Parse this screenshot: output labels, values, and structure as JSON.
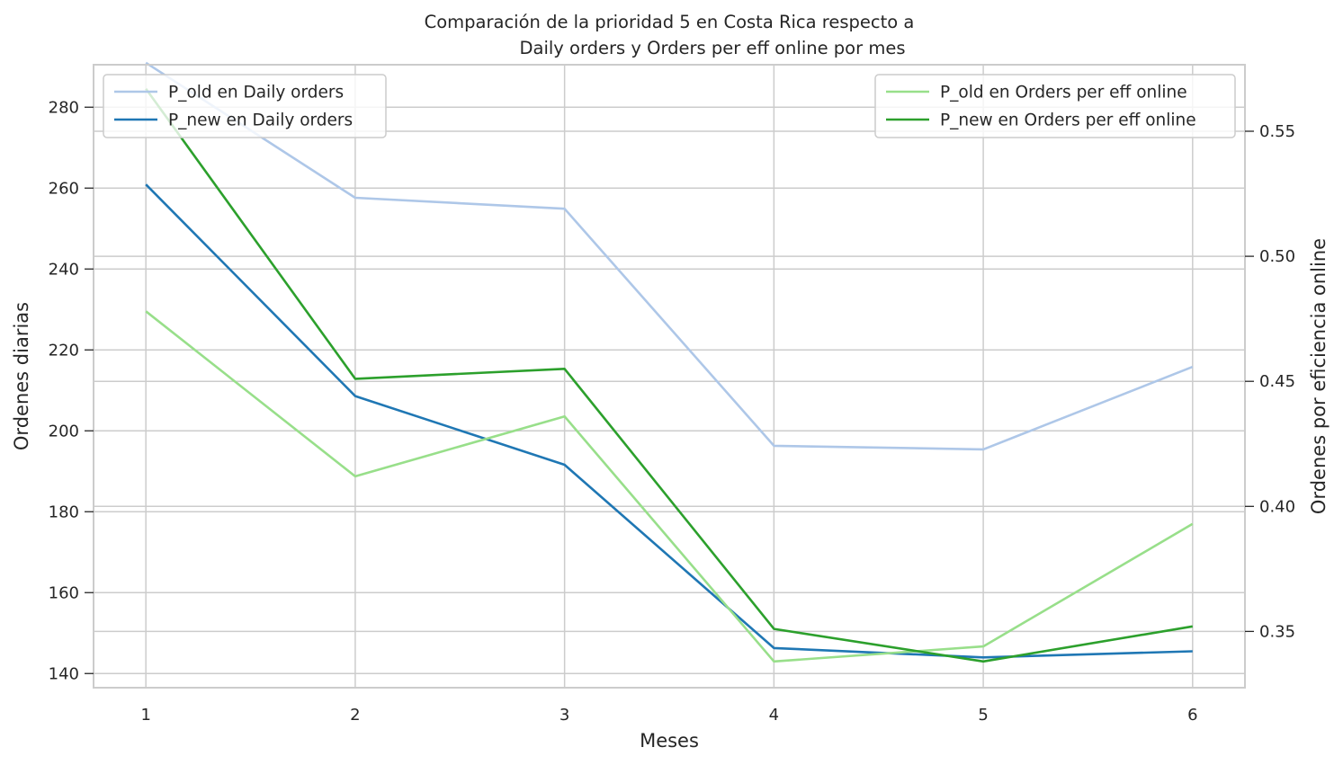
{
  "chart_data": {
    "type": "line",
    "title_line1": "Comparación de la prioridad 5 en Costa Rica respecto a",
    "title_line2": "Daily orders y Orders per eff online por mes",
    "xlabel": "Meses",
    "ylabel_left": "Ordenes diarias",
    "ylabel_right": "Ordenes por eficiencia online",
    "x": [
      1,
      2,
      3,
      4,
      5,
      6
    ],
    "x_tick_labels": [
      "1",
      "2",
      "3",
      "4",
      "5",
      "6"
    ],
    "ylim_left": [
      136.5,
      290.5
    ],
    "yticks_left": [
      140,
      160,
      180,
      200,
      220,
      240,
      260,
      280
    ],
    "ytick_labels_left": [
      "140",
      "160",
      "180",
      "200",
      "220",
      "240",
      "260",
      "280"
    ],
    "ylim_right": [
      0.3275,
      0.5766
    ],
    "yticks_right": [
      0.35,
      0.4,
      0.45,
      0.5,
      0.55
    ],
    "ytick_labels_right": [
      "0.35",
      "0.40",
      "0.45",
      "0.50",
      "0.55"
    ],
    "grid": true,
    "series": [
      {
        "name": "P_old en Daily orders",
        "axis": "left",
        "color": "#aec7e8",
        "values": [
          291,
          257.6,
          254.9,
          196.3,
          195.4,
          215.8
        ]
      },
      {
        "name": "P_new en Daily orders",
        "axis": "left",
        "color": "#1f77b4",
        "values": [
          260.9,
          208.6,
          191.6,
          146.3,
          144.0,
          145.5
        ]
      },
      {
        "name": "P_old en Orders per eff online",
        "axis": "right",
        "color": "#98df8a",
        "values": [
          0.478,
          0.412,
          0.436,
          0.338,
          0.344,
          0.393
        ]
      },
      {
        "name": "P_new en Orders per eff online",
        "axis": "right",
        "color": "#2ca02c",
        "values": [
          0.567,
          0.451,
          0.455,
          0.351,
          0.338,
          0.352
        ]
      }
    ],
    "legend_left": {
      "placement": "top-left",
      "entries": [
        "P_old en Daily orders",
        "P_new en Daily orders"
      ]
    },
    "legend_right": {
      "placement": "top-right",
      "entries": [
        "P_old en Orders per eff online",
        "P_new en Orders per eff online"
      ]
    },
    "grid_color": "#cccccc",
    "frame_color": "#cccccc"
  }
}
